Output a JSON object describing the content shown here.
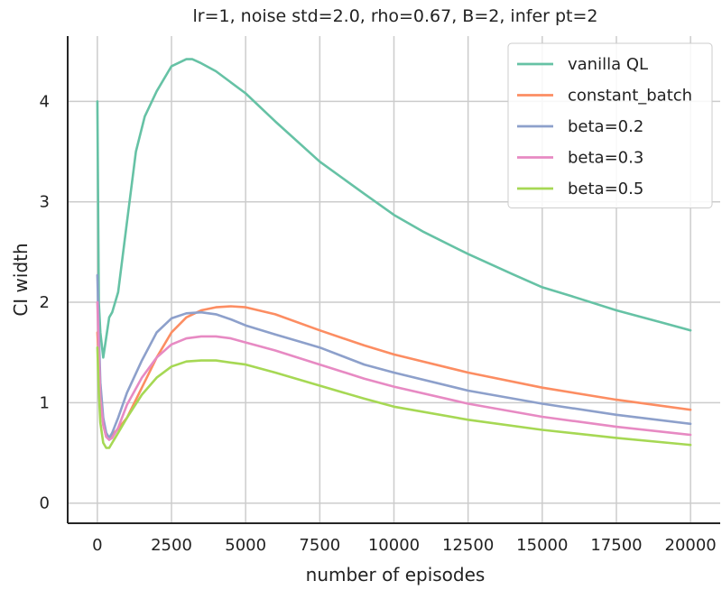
{
  "chart_data": {
    "type": "line",
    "title": "lr=1, noise std=2.0, rho=0.67, B=2, infer pt=2",
    "xlabel": "number of episodes",
    "ylabel": "CI width",
    "xlim": [
      -1000,
      21000
    ],
    "ylim": [
      -0.2,
      4.65
    ],
    "xticks": [
      0,
      2500,
      5000,
      7500,
      10000,
      12500,
      15000,
      17500,
      20000
    ],
    "yticks": [
      0,
      1,
      2,
      3,
      4
    ],
    "grid": true,
    "legend_position": "top-right",
    "series": [
      {
        "name": "vanilla QL",
        "color": "#66c2a5",
        "x": [
          0,
          50,
          100,
          200,
          300,
          400,
          500,
          700,
          1000,
          1300,
          1600,
          2000,
          2500,
          3000,
          3200,
          3500,
          4000,
          5000,
          6000,
          7500,
          9000,
          10000,
          11000,
          12500,
          14000,
          15000,
          16000,
          17500,
          19000,
          20000
        ],
        "y": [
          4.0,
          2.0,
          1.7,
          1.45,
          1.65,
          1.85,
          1.9,
          2.1,
          2.8,
          3.5,
          3.85,
          4.1,
          4.35,
          4.42,
          4.42,
          4.38,
          4.3,
          4.08,
          3.8,
          3.4,
          3.08,
          2.87,
          2.7,
          2.48,
          2.28,
          2.15,
          2.06,
          1.92,
          1.8,
          1.72
        ]
      },
      {
        "name": "constant_batch",
        "color": "#fc8d62",
        "x": [
          0,
          50,
          100,
          200,
          300,
          400,
          500,
          700,
          1000,
          1500,
          2000,
          2500,
          3000,
          3500,
          4000,
          4500,
          5000,
          6000,
          7500,
          9000,
          10000,
          12500,
          15000,
          17500,
          20000
        ],
        "y": [
          1.7,
          1.4,
          1.1,
          0.78,
          0.66,
          0.65,
          0.68,
          0.74,
          0.85,
          1.15,
          1.45,
          1.7,
          1.85,
          1.92,
          1.95,
          1.96,
          1.95,
          1.88,
          1.72,
          1.57,
          1.48,
          1.3,
          1.15,
          1.03,
          0.93
        ]
      },
      {
        "name": "beta=0.2",
        "color": "#8da0cb",
        "x": [
          0,
          50,
          100,
          200,
          300,
          400,
          500,
          700,
          1000,
          1500,
          2000,
          2500,
          3000,
          3500,
          4000,
          4500,
          5000,
          6000,
          7500,
          9000,
          10000,
          12500,
          15000,
          17500,
          20000
        ],
        "y": [
          2.27,
          1.7,
          1.2,
          0.85,
          0.7,
          0.65,
          0.7,
          0.85,
          1.1,
          1.42,
          1.7,
          1.84,
          1.89,
          1.9,
          1.88,
          1.83,
          1.77,
          1.68,
          1.55,
          1.38,
          1.3,
          1.12,
          0.99,
          0.88,
          0.79
        ]
      },
      {
        "name": "beta=0.3",
        "color": "#e78ac3",
        "x": [
          0,
          50,
          100,
          200,
          300,
          400,
          500,
          700,
          1000,
          1500,
          2000,
          2500,
          3000,
          3500,
          4000,
          4500,
          5000,
          6000,
          7500,
          9000,
          10000,
          12500,
          15000,
          17500,
          20000
        ],
        "y": [
          2.0,
          1.5,
          1.05,
          0.78,
          0.66,
          0.63,
          0.65,
          0.75,
          0.98,
          1.25,
          1.45,
          1.58,
          1.64,
          1.66,
          1.66,
          1.64,
          1.6,
          1.52,
          1.38,
          1.24,
          1.16,
          0.99,
          0.86,
          0.76,
          0.68
        ]
      },
      {
        "name": "beta=0.5",
        "color": "#a6d854",
        "x": [
          0,
          50,
          100,
          200,
          300,
          400,
          500,
          700,
          1000,
          1500,
          2000,
          2500,
          3000,
          3500,
          4000,
          4500,
          5000,
          6000,
          7500,
          9000,
          10000,
          12500,
          15000,
          17500,
          20000
        ],
        "y": [
          1.55,
          1.1,
          0.8,
          0.6,
          0.55,
          0.55,
          0.6,
          0.7,
          0.85,
          1.08,
          1.25,
          1.36,
          1.41,
          1.42,
          1.42,
          1.4,
          1.38,
          1.3,
          1.17,
          1.04,
          0.96,
          0.83,
          0.73,
          0.65,
          0.58
        ]
      }
    ]
  }
}
